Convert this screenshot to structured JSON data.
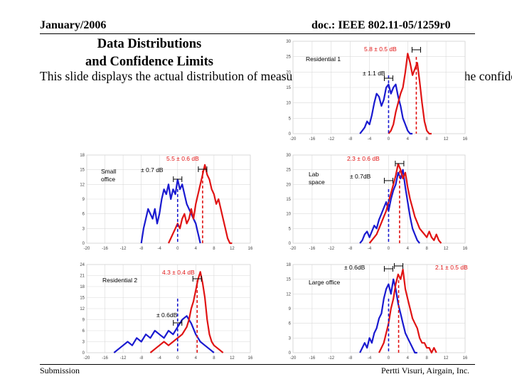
{
  "header": {
    "date": "January/2006",
    "doc_id": "doc.: IEEE 802.11-05/1259r0"
  },
  "title": {
    "line1": "Data Distributions",
    "line2": "and Confidence Limits"
  },
  "body_text": "This slide displays the actual distribution of measurements in each environment and the confidence of the d",
  "footer": {
    "left": "Submission",
    "right": "Pertti Visuri, Airgain, Inc."
  },
  "colors": {
    "series_a": "#1a1ad0",
    "series_b": "#e01414",
    "grid": "#d9d9d9",
    "axis_text": "#444444"
  },
  "chart_data": [
    {
      "id": "residential-1",
      "type": "line",
      "label": "Residential 1",
      "x_ticks": [
        "-20",
        "-16",
        "-12",
        "-8",
        "-4",
        "0",
        "4",
        "8",
        "12",
        "16"
      ],
      "y_ticks": [
        "0",
        "5",
        "10",
        "15",
        "20",
        "25",
        "30"
      ],
      "xlim": [
        -20,
        16
      ],
      "ylim": [
        0,
        30
      ],
      "series": [
        {
          "name": "blue",
          "color": "#1a1ad0",
          "x": [
            -6,
            -5.5,
            -5,
            -4.5,
            -4,
            -3.5,
            -3,
            -2.5,
            -2,
            -1.5,
            -1,
            -0.5,
            0,
            0.5,
            1,
            1.5,
            2,
            2.5,
            3,
            3.5,
            4,
            4.5,
            5
          ],
          "y": [
            0,
            1,
            2,
            4,
            3,
            6,
            10,
            13,
            12,
            9,
            11,
            15,
            16,
            13,
            15,
            16,
            12,
            9,
            5,
            3,
            1,
            0,
            0
          ]
        },
        {
          "name": "red",
          "color": "#e01414",
          "x": [
            0,
            0.5,
            1,
            1.5,
            2,
            2.5,
            3,
            3.5,
            4,
            4.5,
            5,
            5.5,
            6,
            6.5,
            7,
            7.5,
            8,
            8.5,
            9
          ],
          "y": [
            0,
            1,
            3,
            7,
            10,
            13,
            15,
            20,
            26,
            23,
            19,
            21,
            23,
            17,
            10,
            4,
            1,
            0,
            0
          ]
        }
      ],
      "markers": [
        {
          "color": "#1a1ad0",
          "x": 0
        },
        {
          "color": "#e01414",
          "x": 5.8
        }
      ],
      "annotations": [
        {
          "text": "5.8 ± 0.5 dB",
          "color": "#e01414"
        },
        {
          "text": "± 1.1 dB",
          "color": "#000000"
        }
      ]
    },
    {
      "id": "small-office",
      "type": "line",
      "label": "Small office",
      "x_ticks": [
        "-20",
        "-16",
        "-12",
        "-8",
        "-4",
        "0",
        "4",
        "8",
        "12",
        "16"
      ],
      "y_ticks": [
        "0",
        "3",
        "6",
        "9",
        "12",
        "15",
        "18"
      ],
      "xlim": [
        -20,
        16
      ],
      "ylim": [
        0,
        18
      ],
      "series": [
        {
          "name": "blue",
          "color": "#1a1ad0",
          "x": [
            -8,
            -7.5,
            -7,
            -6.5,
            -6,
            -5.5,
            -5,
            -4.5,
            -4,
            -3.5,
            -3,
            -2.5,
            -2,
            -1.5,
            -1,
            -0.5,
            0,
            0.5,
            1,
            1.5,
            2,
            2.5,
            3,
            3.5,
            4,
            4.5,
            5
          ],
          "y": [
            0,
            3,
            5,
            7,
            6,
            5,
            7,
            4,
            6,
            9,
            11,
            10,
            12,
            9,
            11,
            10,
            13,
            11,
            12,
            10,
            8,
            7,
            6,
            5,
            4,
            2,
            0
          ]
        },
        {
          "name": "red",
          "color": "#e01414",
          "x": [
            -2,
            -1.5,
            -1,
            -0.5,
            0,
            0.5,
            1,
            1.5,
            2,
            2.5,
            3,
            3.5,
            4,
            4.5,
            5,
            5.5,
            6,
            6.5,
            7,
            7.5,
            8,
            8.5,
            9,
            9.5,
            10,
            10.5,
            11,
            11.5,
            12
          ],
          "y": [
            0,
            1,
            2,
            3,
            4,
            3,
            5,
            6,
            4,
            5,
            7,
            5,
            8,
            10,
            12,
            14,
            16,
            14,
            13,
            11,
            10,
            8,
            9,
            7,
            5,
            3,
            1,
            0,
            0
          ]
        }
      ],
      "markers": [
        {
          "color": "#1a1ad0",
          "x": 0
        },
        {
          "color": "#e01414",
          "x": 5.5
        }
      ],
      "annotations": [
        {
          "text": "5.5 ± 0.6 dB",
          "color": "#e01414"
        },
        {
          "text": "± 0.7 dB",
          "color": "#000000"
        }
      ]
    },
    {
      "id": "lab-space",
      "type": "line",
      "label": "Lab space",
      "x_ticks": [
        "-20",
        "-16",
        "-12",
        "-8",
        "-4",
        "0",
        "4",
        "8",
        "12",
        "16"
      ],
      "y_ticks": [
        "0",
        "5",
        "10",
        "15",
        "20",
        "25",
        "30"
      ],
      "xlim": [
        -20,
        16
      ],
      "ylim": [
        0,
        30
      ],
      "series": [
        {
          "name": "blue",
          "color": "#1a1ad0",
          "x": [
            -6,
            -5.5,
            -5,
            -4.5,
            -4,
            -3.5,
            -3,
            -2.5,
            -2,
            -1.5,
            -1,
            -0.5,
            0,
            0.5,
            1,
            1.5,
            2,
            2.5,
            3,
            3.5,
            4,
            4.5,
            5,
            5.5,
            6,
            6.5
          ],
          "y": [
            0,
            1,
            3,
            4,
            2,
            4,
            6,
            5,
            8,
            10,
            12,
            14,
            11,
            15,
            18,
            20,
            24,
            22,
            25,
            19,
            14,
            9,
            5,
            3,
            1,
            0
          ]
        },
        {
          "name": "red",
          "color": "#e01414",
          "x": [
            -4,
            -3.5,
            -3,
            -2.5,
            -2,
            -1.5,
            -1,
            -0.5,
            0,
            0.5,
            1,
            1.5,
            2,
            2.5,
            3,
            3.5,
            4,
            4.5,
            5,
            5.5,
            6,
            6.5,
            7,
            7.5,
            8,
            8.5,
            9,
            9.5,
            10,
            10.5,
            11
          ],
          "y": [
            0,
            1,
            2,
            3,
            5,
            7,
            9,
            11,
            14,
            17,
            20,
            23,
            27,
            25,
            22,
            24,
            19,
            15,
            12,
            9,
            7,
            5,
            4,
            3,
            2,
            4,
            2,
            1,
            3,
            1,
            0
          ]
        }
      ],
      "markers": [
        {
          "color": "#1a1ad0",
          "x": 0
        },
        {
          "color": "#e01414",
          "x": 2.3
        }
      ],
      "annotations": [
        {
          "text": "2.3 ± 0.6 dB",
          "color": "#e01414"
        },
        {
          "text": "± 0.7dB",
          "color": "#000000"
        }
      ]
    },
    {
      "id": "residential-2",
      "type": "line",
      "label": "Residential 2",
      "x_ticks": [
        "-20",
        "-16",
        "-12",
        "-8",
        "-4",
        "0",
        "4",
        "8",
        "12",
        "16"
      ],
      "y_ticks": [
        "0",
        "3",
        "6",
        "9",
        "12",
        "15",
        "18",
        "21",
        "24"
      ],
      "xlim": [
        -20,
        16
      ],
      "ylim": [
        0,
        24
      ],
      "series": [
        {
          "name": "blue",
          "color": "#1a1ad0",
          "x": [
            -14,
            -13,
            -12,
            -11,
            -10,
            -9,
            -8,
            -7,
            -6,
            -5,
            -4,
            -3,
            -2,
            -1,
            0,
            1,
            2,
            3,
            4,
            5,
            6,
            7,
            8
          ],
          "y": [
            0,
            1,
            2,
            3,
            2,
            4,
            3,
            5,
            4,
            6,
            5,
            4,
            6,
            5,
            7,
            9,
            10,
            8,
            5,
            3,
            2,
            1,
            0
          ]
        },
        {
          "name": "red",
          "color": "#e01414",
          "x": [
            -6,
            -5,
            -4,
            -3,
            -2,
            -1,
            0,
            1,
            2,
            2.5,
            3,
            3.5,
            4,
            4.5,
            5,
            5.5,
            6,
            6.5,
            7,
            7.5,
            8,
            9,
            10
          ],
          "y": [
            0,
            1,
            2,
            3,
            2,
            3,
            4,
            5,
            7,
            9,
            12,
            14,
            17,
            20,
            22,
            19,
            15,
            9,
            5,
            3,
            2,
            1,
            0
          ]
        }
      ],
      "markers": [
        {
          "color": "#1a1ad0",
          "x": 0
        },
        {
          "color": "#e01414",
          "x": 4.3
        }
      ],
      "annotations": [
        {
          "text": "4.3 ± 0.4 dB",
          "color": "#e01414"
        },
        {
          "text": "± 0.6dB",
          "color": "#000000"
        }
      ]
    },
    {
      "id": "large-office",
      "type": "line",
      "label": "Large office",
      "x_ticks": [
        "-20",
        "-16",
        "-12",
        "-8",
        "-4",
        "0",
        "4",
        "8",
        "12",
        "16"
      ],
      "y_ticks": [
        "0",
        "3",
        "6",
        "9",
        "12",
        "15",
        "18"
      ],
      "xlim": [
        -20,
        16
      ],
      "ylim": [
        0,
        18
      ],
      "series": [
        {
          "name": "blue",
          "color": "#1a1ad0",
          "x": [
            -6,
            -5.5,
            -5,
            -4.5,
            -4,
            -3.5,
            -3,
            -2.5,
            -2,
            -1.5,
            -1,
            -0.5,
            0,
            0.5,
            1,
            1.5,
            2,
            2.5,
            3,
            3.5,
            4,
            4.5,
            5,
            5.5,
            6
          ],
          "y": [
            0,
            1,
            2,
            1,
            3,
            2,
            4,
            5,
            7,
            8,
            11,
            13,
            14,
            12,
            15,
            13,
            10,
            8,
            6,
            4,
            3,
            2,
            1,
            0,
            0
          ]
        },
        {
          "name": "red",
          "color": "#e01414",
          "x": [
            -2,
            -1.5,
            -1,
            -0.5,
            0,
            0.5,
            1,
            1.5,
            2,
            2.5,
            3,
            3.5,
            4,
            4.5,
            5,
            5.5,
            6,
            6.5,
            7,
            7.5,
            8,
            8.5,
            9,
            9.5,
            10
          ],
          "y": [
            0,
            1,
            2,
            4,
            6,
            9,
            11,
            14,
            16,
            15,
            17,
            13,
            11,
            9,
            7,
            6,
            5,
            3,
            2,
            2,
            1,
            1,
            0,
            1,
            0
          ]
        }
      ],
      "markers": [
        {
          "color": "#1a1ad0",
          "x": 0
        },
        {
          "color": "#e01414",
          "x": 2.1
        }
      ],
      "annotations": [
        {
          "text": "2.1 ± 0.5 dB",
          "color": "#e01414"
        },
        {
          "text": "± 0.6dB",
          "color": "#000000"
        }
      ]
    }
  ]
}
